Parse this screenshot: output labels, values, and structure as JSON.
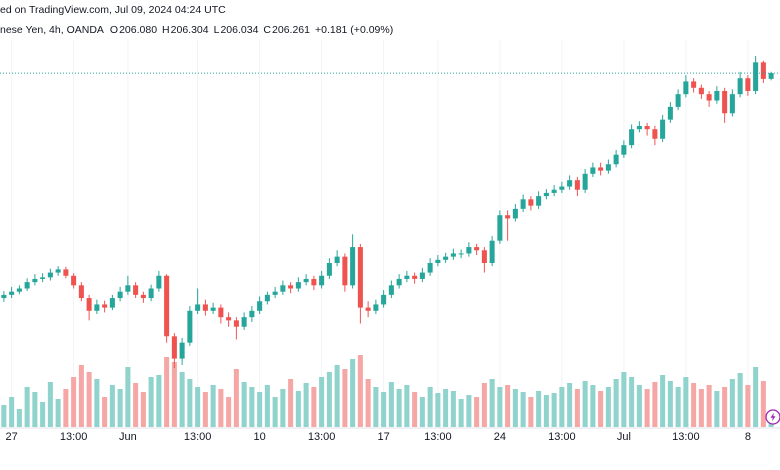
{
  "chart_data": {
    "type": "candlestick",
    "header": {
      "source": "ed on TradingView.com, Jul 09, 2024 04:24 UTC",
      "symbol": "nese Yen, 4h, OANDA",
      "ohlc": [
        {
          "key": "O",
          "value": "206.080"
        },
        {
          "key": "H",
          "value": "206.304"
        },
        {
          "key": "L",
          "value": "206.034"
        },
        {
          "key": "C",
          "value": "206.261"
        }
      ],
      "change": "+0.181 (+0.09%)"
    },
    "categories": [
      null,
      "27",
      null,
      null,
      null,
      null,
      null,
      null,
      null,
      "13:00",
      null,
      null,
      null,
      null,
      null,
      null,
      "Jun",
      null,
      null,
      null,
      null,
      null,
      null,
      null,
      null,
      "13:00",
      null,
      null,
      null,
      null,
      null,
      null,
      null,
      "10",
      null,
      null,
      null,
      null,
      null,
      null,
      null,
      "13:00",
      null,
      null,
      null,
      null,
      null,
      null,
      null,
      "17",
      null,
      null,
      null,
      null,
      null,
      null,
      "13:00",
      null,
      null,
      null,
      null,
      null,
      null,
      null,
      "24",
      null,
      null,
      null,
      null,
      null,
      null,
      null,
      "13:00",
      null,
      null,
      null,
      null,
      null,
      null,
      null,
      "Jul",
      null,
      null,
      null,
      null,
      null,
      null,
      null,
      "13:00",
      null,
      null,
      null,
      null,
      null,
      null,
      null,
      "8",
      null,
      null,
      null
    ],
    "open": [
      199.2,
      199.3,
      199.4,
      199.5,
      199.7,
      199.8,
      199.85,
      200.0,
      200.1,
      199.9,
      199.6,
      199.2,
      198.8,
      199.0,
      198.9,
      199.2,
      199.4,
      199.6,
      199.3,
      199.2,
      199.5,
      199.9,
      198.0,
      197.3,
      197.8,
      198.8,
      199.0,
      198.8,
      198.9,
      198.6,
      198.5,
      198.3,
      198.6,
      198.8,
      199.1,
      199.3,
      199.4,
      199.6,
      199.5,
      199.7,
      199.8,
      199.6,
      199.9,
      200.3,
      200.5,
      199.6,
      200.8,
      198.9,
      198.8,
      199.0,
      199.3,
      199.6,
      199.8,
      199.9,
      199.8,
      200.0,
      200.3,
      200.4,
      200.5,
      200.6,
      200.6,
      200.8,
      200.7,
      200.3,
      201.0,
      201.8,
      201.7,
      202.0,
      202.3,
      202.1,
      202.4,
      202.5,
      202.6,
      202.7,
      202.9,
      202.6,
      203.1,
      203.3,
      203.2,
      203.4,
      203.7,
      204.0,
      204.5,
      204.6,
      204.5,
      204.2,
      204.8,
      205.2,
      205.6,
      206.0,
      205.8,
      205.6,
      205.4,
      205.7,
      205.0,
      205.6,
      206.1,
      205.7,
      206.6,
      206.08
    ],
    "high": [
      199.42,
      199.55,
      199.6,
      199.82,
      199.95,
      199.98,
      200.12,
      200.2,
      200.18,
      199.98,
      199.7,
      199.3,
      199.15,
      199.12,
      199.3,
      199.55,
      199.9,
      199.7,
      199.4,
      199.62,
      200.05,
      199.95,
      198.1,
      197.95,
      198.95,
      199.5,
      199.15,
      199.05,
      199.0,
      198.75,
      198.6,
      198.75,
      198.95,
      199.25,
      199.4,
      199.55,
      199.75,
      199.7,
      199.85,
      199.95,
      199.9,
      200.05,
      200.45,
      200.7,
      200.6,
      201.2,
      200.9,
      199.1,
      199.15,
      199.45,
      199.75,
      199.95,
      200.05,
      200.0,
      200.15,
      200.45,
      200.55,
      200.62,
      200.75,
      200.72,
      200.95,
      200.9,
      200.8,
      201.15,
      201.95,
      201.95,
      202.15,
      202.45,
      202.4,
      202.55,
      202.62,
      202.75,
      202.85,
      203.05,
      203.0,
      203.25,
      203.45,
      203.45,
      203.55,
      203.85,
      204.15,
      204.65,
      204.75,
      204.7,
      204.6,
      204.95,
      205.35,
      205.75,
      206.2,
      206.1,
      205.9,
      205.7,
      205.85,
      205.8,
      205.75,
      206.3,
      206.2,
      206.8,
      206.65,
      206.304
    ],
    "low": [
      199.08,
      199.2,
      199.32,
      199.42,
      199.6,
      199.7,
      199.75,
      199.9,
      199.82,
      199.5,
      199.1,
      198.5,
      198.7,
      198.75,
      198.82,
      199.1,
      199.3,
      199.2,
      199.05,
      199.1,
      199.4,
      197.8,
      197.0,
      197.1,
      197.7,
      198.7,
      198.65,
      198.7,
      198.4,
      198.3,
      197.9,
      198.2,
      198.45,
      198.7,
      199.0,
      199.2,
      199.3,
      199.35,
      199.4,
      199.6,
      199.45,
      199.5,
      199.8,
      200.2,
      199.4,
      199.5,
      198.4,
      198.6,
      198.7,
      198.9,
      199.2,
      199.5,
      199.7,
      199.65,
      199.7,
      199.9,
      200.2,
      200.3,
      200.4,
      200.45,
      200.5,
      200.55,
      200.0,
      200.2,
      200.9,
      201.0,
      201.6,
      201.9,
      201.95,
      202.0,
      202.3,
      202.4,
      202.5,
      202.6,
      202.4,
      202.5,
      203.0,
      203.05,
      203.1,
      203.3,
      203.6,
      203.9,
      204.4,
      204.3,
      204.0,
      204.1,
      204.7,
      205.1,
      205.5,
      205.65,
      205.45,
      205.2,
      205.3,
      204.7,
      204.9,
      205.5,
      205.55,
      205.6,
      205.95,
      206.034
    ],
    "close": [
      199.3,
      199.4,
      199.5,
      199.7,
      199.8,
      199.85,
      200.0,
      200.1,
      199.9,
      199.6,
      199.2,
      198.8,
      199.0,
      198.9,
      199.2,
      199.4,
      199.6,
      199.3,
      199.2,
      199.5,
      199.9,
      198.0,
      197.3,
      197.8,
      198.8,
      199.0,
      198.8,
      198.9,
      198.6,
      198.5,
      198.3,
      198.6,
      198.8,
      199.1,
      199.3,
      199.4,
      199.6,
      199.5,
      199.7,
      199.8,
      199.6,
      199.9,
      200.3,
      200.5,
      199.6,
      200.8,
      198.9,
      198.8,
      199.0,
      199.3,
      199.6,
      199.8,
      199.9,
      199.8,
      200.0,
      200.3,
      200.4,
      200.5,
      200.6,
      200.6,
      200.8,
      200.7,
      200.3,
      201.0,
      201.8,
      201.7,
      202.0,
      202.3,
      202.1,
      202.4,
      202.5,
      202.6,
      202.7,
      202.9,
      202.6,
      203.1,
      203.3,
      203.2,
      203.4,
      203.7,
      204.0,
      204.5,
      204.6,
      204.5,
      204.2,
      204.8,
      205.2,
      205.6,
      206.0,
      205.8,
      205.6,
      205.4,
      205.7,
      205.0,
      205.6,
      206.1,
      205.7,
      206.6,
      206.08,
      206.261
    ],
    "volume": [
      22,
      30,
      18,
      40,
      35,
      25,
      45,
      28,
      38,
      50,
      62,
      55,
      48,
      30,
      42,
      38,
      60,
      44,
      35,
      50,
      52,
      70,
      65,
      55,
      48,
      40,
      35,
      42,
      38,
      30,
      58,
      45,
      40,
      35,
      42,
      30,
      38,
      48,
      36,
      44,
      40,
      50,
      55,
      62,
      58,
      68,
      72,
      48,
      40,
      35,
      45,
      38,
      42,
      35,
      30,
      40,
      34,
      38,
      36,
      28,
      32,
      30,
      44,
      48,
      40,
      42,
      38,
      35,
      30,
      36,
      32,
      34,
      40,
      44,
      38,
      46,
      42,
      36,
      40,
      48,
      55,
      50,
      42,
      38,
      45,
      52,
      46,
      40,
      50,
      44,
      38,
      42,
      36,
      40,
      48,
      54,
      42,
      60,
      46,
      10
    ],
    "ylim": [
      196.0,
      207.3
    ],
    "volume_lim": [
      0,
      100
    ],
    "up_color": "#26a69a",
    "down_color": "#ef5350",
    "volume_up_color": "#8fd3cc",
    "volume_down_color": "#f5a7a6",
    "last_price_line": true,
    "grid": true
  }
}
